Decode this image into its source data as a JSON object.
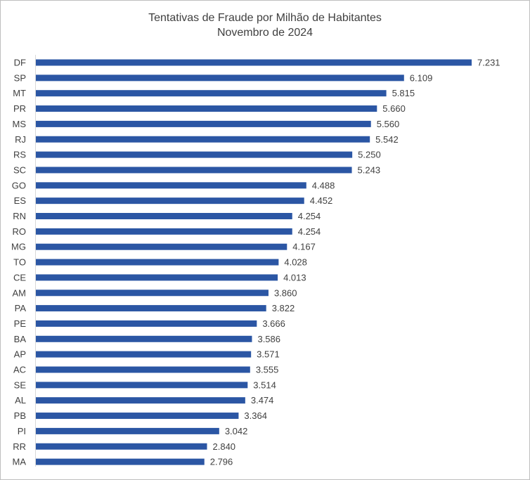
{
  "chart_data": {
    "type": "bar",
    "orientation": "horizontal",
    "title": "Tentativas de Fraude por Milhão de Habitantes",
    "subtitle": "Novembro de 2024",
    "categories": [
      "DF",
      "SP",
      "MT",
      "PR",
      "MS",
      "RJ",
      "RS",
      "SC",
      "GO",
      "ES",
      "RN",
      "RO",
      "MG",
      "TO",
      "CE",
      "AM",
      "PA",
      "PE",
      "BA",
      "AP",
      "AC",
      "SE",
      "AL",
      "PB",
      "PI",
      "RR",
      "MA"
    ],
    "values": [
      7231,
      6109,
      5815,
      5660,
      5560,
      5542,
      5250,
      5243,
      4488,
      4452,
      4254,
      4254,
      4167,
      4028,
      4013,
      3860,
      3822,
      3666,
      3586,
      3571,
      3555,
      3514,
      3474,
      3364,
      3042,
      2840,
      2796
    ],
    "value_labels": [
      "7.231",
      "6.109",
      "5.815",
      "5.660",
      "5.560",
      "5.542",
      "5.250",
      "5.243",
      "4.488",
      "4.452",
      "4.254",
      "4.254",
      "4.167",
      "4.028",
      "4.013",
      "3.860",
      "3.822",
      "3.666",
      "3.586",
      "3.571",
      "3.555",
      "3.514",
      "3.474",
      "3.364",
      "3.042",
      "2.840",
      "2.796"
    ],
    "xlim": [
      0,
      7231
    ],
    "bar_color": "#2b56a4",
    "grid": false,
    "legend": "none"
  }
}
